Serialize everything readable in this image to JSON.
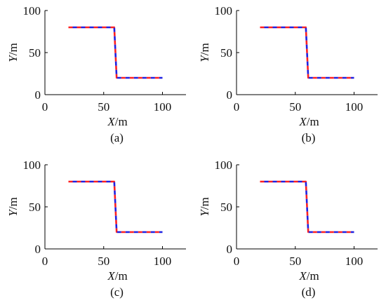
{
  "chart_data": [
    {
      "type": "line",
      "caption": "(a)",
      "xlabel_var": "X",
      "xlabel_unit": "/m",
      "ylabel_var": "Y",
      "ylabel_unit": "/m",
      "xlim": [
        0,
        120
      ],
      "ylim": [
        0,
        100
      ],
      "xticks": [
        0,
        50,
        100
      ],
      "yticks": [
        0,
        50,
        100
      ],
      "grid": false,
      "series": [
        {
          "style": "red dashed",
          "x": [
            20,
            59,
            60,
            61,
            100
          ],
          "y": [
            80,
            80,
            50,
            20,
            20
          ]
        },
        {
          "style": "blue dashed",
          "x": [
            20,
            59,
            60,
            61,
            100
          ],
          "y": [
            80,
            80,
            50,
            20,
            20
          ]
        }
      ]
    },
    {
      "type": "line",
      "caption": "(b)",
      "xlabel_var": "X",
      "xlabel_unit": "/m",
      "ylabel_var": "Y",
      "ylabel_unit": "/m",
      "xlim": [
        0,
        120
      ],
      "ylim": [
        0,
        100
      ],
      "xticks": [
        0,
        50,
        100
      ],
      "yticks": [
        0,
        50,
        100
      ],
      "grid": false,
      "series": [
        {
          "style": "red dashed",
          "x": [
            20,
            59,
            60,
            61,
            100
          ],
          "y": [
            80,
            80,
            50,
            20,
            20
          ]
        },
        {
          "style": "blue dashed",
          "x": [
            20,
            59,
            60,
            61,
            100
          ],
          "y": [
            80,
            80,
            50,
            20,
            20
          ]
        }
      ]
    },
    {
      "type": "line",
      "caption": "(c)",
      "xlabel_var": "X",
      "xlabel_unit": "/m",
      "ylabel_var": "Y",
      "ylabel_unit": "/m",
      "xlim": [
        0,
        120
      ],
      "ylim": [
        0,
        100
      ],
      "xticks": [
        0,
        50,
        100
      ],
      "yticks": [
        0,
        50,
        100
      ],
      "grid": false,
      "series": [
        {
          "style": "red dashed",
          "x": [
            20,
            59,
            60,
            61,
            100
          ],
          "y": [
            80,
            80,
            50,
            20,
            20
          ]
        },
        {
          "style": "blue dashed",
          "x": [
            20,
            59,
            60,
            61,
            100
          ],
          "y": [
            80,
            80,
            50,
            20,
            20
          ]
        }
      ]
    },
    {
      "type": "line",
      "caption": "(d)",
      "xlabel_var": "X",
      "xlabel_unit": "/m",
      "ylabel_var": "Y",
      "ylabel_unit": "/m",
      "xlim": [
        0,
        120
      ],
      "ylim": [
        0,
        100
      ],
      "xticks": [
        0,
        50,
        100
      ],
      "yticks": [
        0,
        50,
        100
      ],
      "grid": false,
      "series": [
        {
          "style": "red dashed",
          "x": [
            20,
            59,
            60,
            61,
            100
          ],
          "y": [
            80,
            80,
            50,
            20,
            20
          ]
        },
        {
          "style": "blue dashed",
          "x": [
            20,
            59,
            60,
            61,
            100
          ],
          "y": [
            80,
            80,
            50,
            20,
            20
          ]
        }
      ]
    }
  ],
  "colors": {
    "series_red": "#ff2020",
    "series_blue": "#2020e0",
    "axis": "#000000",
    "text": "#111111"
  }
}
